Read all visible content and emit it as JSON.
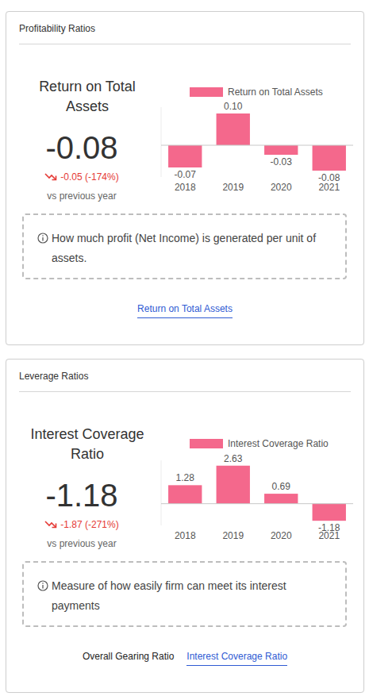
{
  "cards": [
    {
      "header": "Profitability Ratios",
      "metric_title": "Return on Total Assets",
      "metric_value": -0.08,
      "change": "-0.05 (-174%)",
      "comparison": "vs previous year",
      "info": "How much profit (Net Income) is generated per unit of assets.",
      "tabs": [
        {
          "label": "Return on Total Assets",
          "active": true
        }
      ]
    },
    {
      "header": "Leverage Ratios",
      "metric_title": "Interest Coverage Ratio",
      "metric_value": -1.18,
      "change": "-1.87 (-271%)",
      "comparison": "vs previous year",
      "info": "Measure of how easily firm can meet its interest payments",
      "tabs": [
        {
          "label": "Overall Gearing Ratio",
          "active": false
        },
        {
          "label": "Interest Coverage Ratio",
          "active": true
        }
      ]
    }
  ],
  "chart_data": [
    {
      "type": "bar",
      "categories": [
        "2018",
        "2019",
        "2020",
        "2021"
      ],
      "series": [
        {
          "name": "Return on Total Assets",
          "color": "#f4688c",
          "values": [
            -0.07,
            0.1,
            -0.03,
            -0.08
          ],
          "value_labels": [
            "-0.07",
            "0.10",
            "-0.03",
            "-0.08"
          ]
        }
      ],
      "ylim": [
        -0.1,
        0.12
      ],
      "legend": "top",
      "data_labels": true,
      "tick_labels": "x"
    },
    {
      "type": "bar",
      "categories": [
        "2018",
        "2019",
        "2020",
        "2021"
      ],
      "series": [
        {
          "name": "Interest Coverage Ratio",
          "color": "#f4688c",
          "values": [
            1.28,
            2.63,
            0.69,
            -1.18
          ],
          "value_labels": [
            "1.28",
            "2.63",
            "0.69",
            "-1.18"
          ]
        }
      ],
      "ylim": [
        -1.5,
        3
      ],
      "legend": "top",
      "data_labels": true,
      "tick_labels": "x"
    }
  ]
}
